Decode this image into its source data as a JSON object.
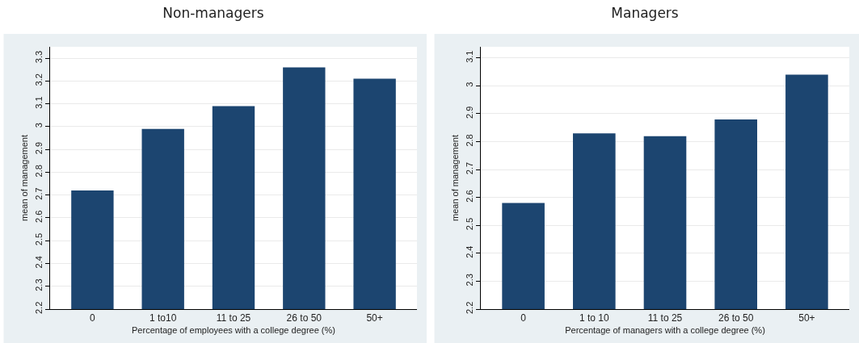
{
  "chart_data": [
    {
      "type": "bar",
      "title": "Non-managers",
      "xlabel": "Percentage of employees with a college degree (%)",
      "ylabel": "mean of management",
      "categories": [
        "0",
        "1 to10",
        "11 to 25",
        "26 to 50",
        "50+"
      ],
      "values": [
        2.72,
        2.99,
        3.09,
        3.26,
        3.21
      ],
      "color": "#1c4570",
      "ylim": [
        2.2,
        3.35
      ],
      "yticks": [
        2.2,
        2.3,
        2.4,
        2.5,
        2.6,
        2.7,
        2.8,
        2.9,
        3,
        3.1,
        3.2,
        3.3
      ],
      "grid": "y"
    },
    {
      "type": "bar",
      "title": "Managers",
      "xlabel": "Percentage of managers with a college degree (%)",
      "ylabel": "mean of management",
      "categories": [
        "0",
        "1 to 10",
        "11 to 25",
        "26 to 50",
        "50+"
      ],
      "values": [
        2.58,
        2.83,
        2.82,
        2.88,
        3.04
      ],
      "color": "#1c4570",
      "ylim": [
        2.2,
        3.14
      ],
      "yticks": [
        2.2,
        2.3,
        2.4,
        2.5,
        2.6,
        2.7,
        2.8,
        2.9,
        3,
        3.1
      ],
      "grid": "y"
    }
  ]
}
